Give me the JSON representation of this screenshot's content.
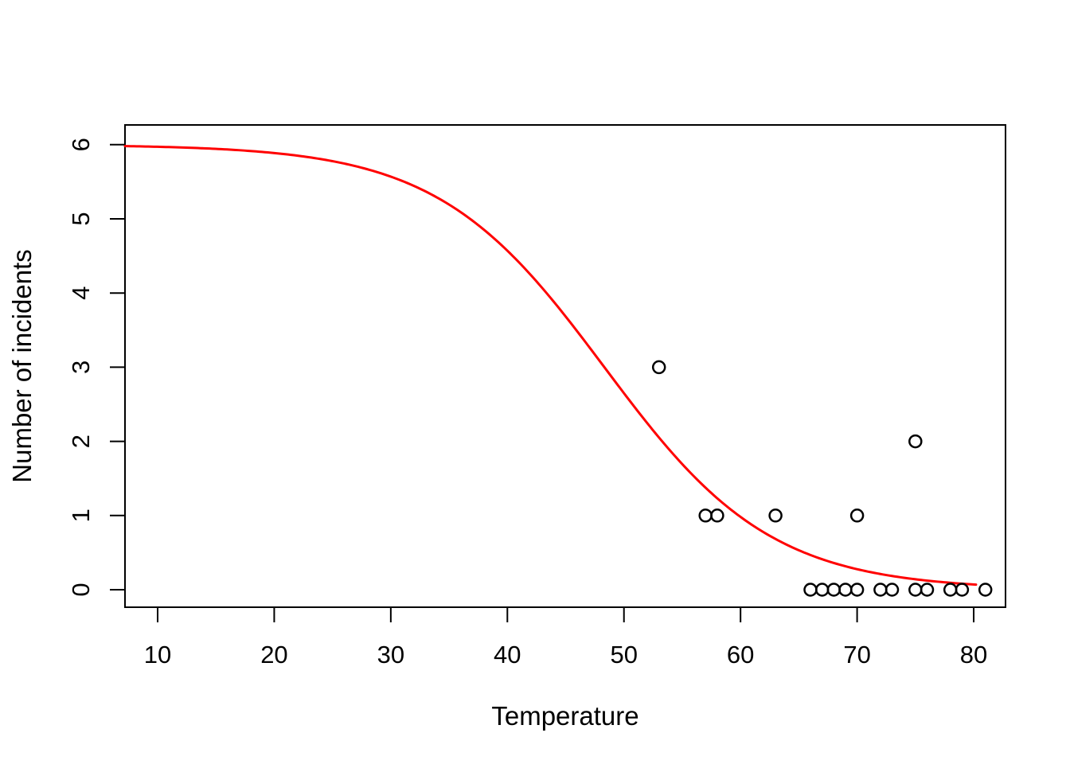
{
  "figure": {
    "background": "#ffffff",
    "border_color": "#000000"
  },
  "chart_data": {
    "type": "scatter",
    "title": "",
    "xlabel": "Temperature",
    "ylabel": "Number of incidents",
    "xlim": [
      7.2,
      82.73
    ],
    "ylim": [
      -0.236,
      6.266
    ],
    "x_ticks": [
      10,
      20,
      30,
      40,
      50,
      60,
      70,
      80
    ],
    "y_ticks": [
      0,
      1,
      2,
      3,
      4,
      5,
      6
    ],
    "grid": false,
    "legend": null,
    "points": [
      {
        "x": 53,
        "y": 3
      },
      {
        "x": 57,
        "y": 1
      },
      {
        "x": 58,
        "y": 1
      },
      {
        "x": 63,
        "y": 1
      },
      {
        "x": 66,
        "y": 0
      },
      {
        "x": 67,
        "y": 0
      },
      {
        "x": 68,
        "y": 0
      },
      {
        "x": 69,
        "y": 0
      },
      {
        "x": 70,
        "y": 0
      },
      {
        "x": 70,
        "y": 1
      },
      {
        "x": 72,
        "y": 0
      },
      {
        "x": 73,
        "y": 0
      },
      {
        "x": 75,
        "y": 0
      },
      {
        "x": 75,
        "y": 2
      },
      {
        "x": 76,
        "y": 0
      },
      {
        "x": 78,
        "y": 0
      },
      {
        "x": 79,
        "y": 0
      },
      {
        "x": 81,
        "y": 0
      }
    ],
    "point_style": {
      "shape": "open-circle",
      "color": "#000000",
      "radius": 7.5
    },
    "curve": {
      "kind": "logistic-fit",
      "formula": "y = 6 / (1 + exp(0.1397 * (x - 48.32)))",
      "ymax": 6,
      "k": 0.1397,
      "midpoint": 48.32,
      "x_start": 7.2,
      "x_end": 80.2,
      "color": "#ff0000"
    }
  }
}
